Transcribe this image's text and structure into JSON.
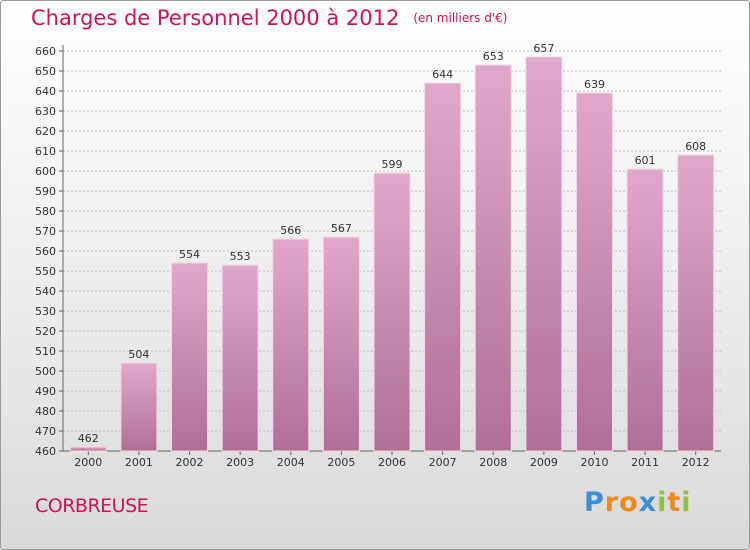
{
  "header": {
    "title": "Charges de Personnel 2000 à 2012",
    "subtitle": "(en milliers d'€)"
  },
  "footer": {
    "location": "CORBREUSE",
    "brand": "Proxiti",
    "brand_letters": [
      "P",
      "r",
      "o",
      "x",
      "i",
      "t",
      "i"
    ],
    "brand_colors": [
      "#3c8fd6",
      "#f08a1c",
      "#f08a1c",
      "#3c8fd6",
      "#8cc63f",
      "#f08a1c",
      "#8cc63f"
    ]
  },
  "chart_data": {
    "type": "bar",
    "title": "Charges de Personnel 2000 à 2012",
    "subtitle": "(en milliers d'€)",
    "categories": [
      "2000",
      "2001",
      "2002",
      "2003",
      "2004",
      "2005",
      "2006",
      "2007",
      "2008",
      "2009",
      "2010",
      "2011",
      "2012"
    ],
    "values": [
      462,
      504,
      554,
      553,
      566,
      567,
      599,
      644,
      653,
      657,
      639,
      601,
      608
    ],
    "ylim": [
      460,
      660
    ],
    "ytick_step": 10,
    "grid": true,
    "bar_color_top": "#e2a8cb",
    "bar_color_bottom": "#b06f97",
    "grid_color": "#bdbdbd"
  }
}
